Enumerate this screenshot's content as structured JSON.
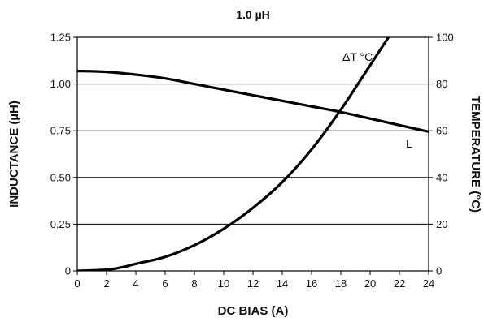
{
  "chart_data": {
    "type": "line",
    "title": "1.0 µH",
    "xlabel": "DC BIAS (A)",
    "ylabel_left": "INDUCTANCE (µH)",
    "ylabel_right": "TEMPERATURE (°C)",
    "xlim": [
      0,
      24
    ],
    "ylim_left": [
      0,
      1.25
    ],
    "ylim_right": [
      0,
      100
    ],
    "x_ticks": [
      "0",
      "2",
      "4",
      "6",
      "8",
      "10",
      "12",
      "14",
      "16",
      "18",
      "20",
      "22",
      "24"
    ],
    "y_ticks_left": [
      "0",
      "0.25",
      "0.50",
      "0.75",
      "1.00",
      "1.25"
    ],
    "y_ticks_right": [
      "0",
      "20",
      "40",
      "60",
      "80",
      "100"
    ],
    "grid": "horizontal",
    "annotations": [
      "ΔT °C",
      "L"
    ],
    "series": [
      {
        "name": "L",
        "axis": "left",
        "x": [
          0,
          2,
          4,
          6,
          8,
          10,
          12,
          14,
          16,
          18,
          20,
          22,
          24
        ],
        "y": [
          1.07,
          1.065,
          1.05,
          1.03,
          1.0,
          0.97,
          0.94,
          0.91,
          0.88,
          0.85,
          0.815,
          0.78,
          0.745
        ]
      },
      {
        "name": "ΔT °C",
        "axis": "right",
        "x": [
          0,
          2,
          3,
          4,
          6,
          8,
          10,
          12,
          14,
          16,
          18,
          20,
          22,
          23
        ],
        "y": [
          0,
          0.5,
          1.5,
          3,
          6,
          11,
          18,
          27,
          38,
          52,
          69,
          88,
          107,
          115
        ]
      }
    ]
  }
}
